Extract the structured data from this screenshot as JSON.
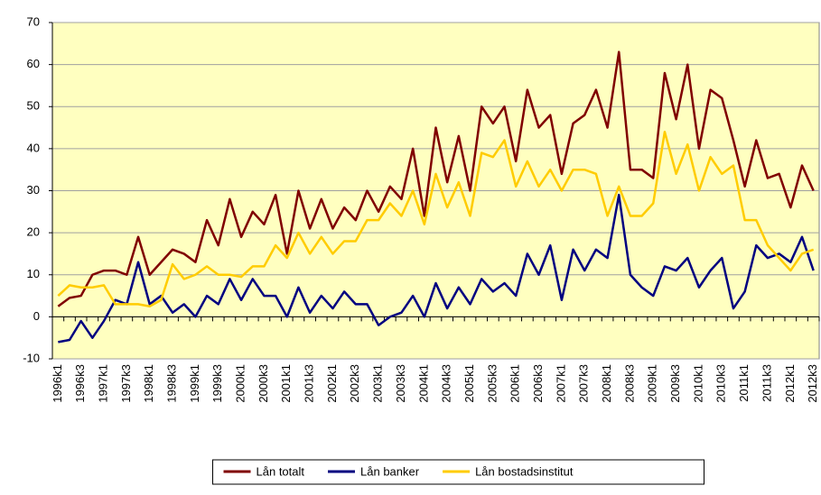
{
  "chart_data": {
    "type": "line",
    "categories": [
      "1996k1",
      null,
      "1996k3",
      null,
      "1997k1",
      null,
      "1997k3",
      null,
      "1998k1",
      null,
      "1998k3",
      null,
      "1999k1",
      null,
      "1999k3",
      null,
      "2000k1",
      null,
      "2000k3",
      null,
      "2001k1",
      null,
      "2001k3",
      null,
      "2002k1",
      null,
      "2002k3",
      null,
      "2003k1",
      null,
      "2003k3",
      null,
      "2004k1",
      null,
      "2004k3",
      null,
      "2005k1",
      null,
      "2005k3",
      null,
      "2006k1",
      null,
      "2006k3",
      null,
      "2007k1",
      null,
      "2007k3",
      null,
      "2008k1",
      null,
      "2008k3",
      null,
      "2009k1",
      null,
      "2009k3",
      null,
      "2010k1",
      null,
      "2010k3",
      null,
      "2011k1",
      null,
      "2011k3",
      null,
      "2012k1",
      null,
      "2012k3"
    ],
    "series": [
      {
        "name": "Lån totalt",
        "color": "#800000",
        "values": [
          2.5,
          4.5,
          5,
          10,
          11,
          11,
          10,
          19,
          10,
          13,
          16,
          15,
          13,
          23,
          17,
          28,
          19,
          25,
          22,
          29,
          15,
          30,
          21,
          28,
          21,
          26,
          23,
          30,
          25,
          31,
          28,
          40,
          24,
          45,
          32,
          43,
          30,
          50,
          46,
          50,
          37,
          54,
          45,
          48,
          34,
          46,
          48,
          54,
          45,
          63,
          35,
          35,
          33,
          58,
          47,
          60,
          40,
          54,
          52,
          42,
          31,
          42,
          33,
          34,
          26,
          36,
          30
        ]
      },
      {
        "name": "Lån banker",
        "color": "#000080",
        "values": [
          -6,
          -5.5,
          -1,
          -5,
          -1,
          4,
          3,
          13,
          3,
          5,
          1,
          3,
          0,
          5,
          3,
          9,
          4,
          9,
          5,
          5,
          0,
          7,
          1,
          5,
          2,
          6,
          3,
          3,
          -2,
          0,
          1,
          5,
          0,
          8,
          2,
          7,
          3,
          9,
          6,
          8,
          5,
          15,
          10,
          17,
          4,
          16,
          11,
          16,
          14,
          29,
          10,
          7,
          5,
          12,
          11,
          14,
          7,
          11,
          14,
          2,
          6,
          17,
          14,
          15,
          13,
          19,
          11
        ]
      },
      {
        "name": "Lån bostadsinstitut",
        "color": "#FFCC00",
        "values": [
          5,
          7.5,
          7,
          7,
          7.5,
          3,
          3,
          3,
          2.5,
          4,
          12.5,
          9,
          10,
          12,
          10,
          10,
          9.5,
          12,
          12,
          17,
          14,
          20,
          15,
          19,
          15,
          18,
          18,
          23,
          23,
          27,
          24,
          30,
          22,
          34,
          26,
          32,
          24,
          39,
          38,
          42,
          31,
          37,
          31,
          35,
          30,
          35,
          35,
          34,
          24,
          31,
          24,
          24,
          27,
          44,
          34,
          41,
          30,
          38,
          34,
          36,
          23,
          23,
          17,
          14,
          11,
          15,
          16
        ]
      }
    ],
    "ylim": [
      -10,
      70
    ],
    "yticks": [
      -10,
      0,
      10,
      20,
      30,
      40,
      50,
      60,
      70
    ],
    "grid": true,
    "legend": "bottom"
  }
}
